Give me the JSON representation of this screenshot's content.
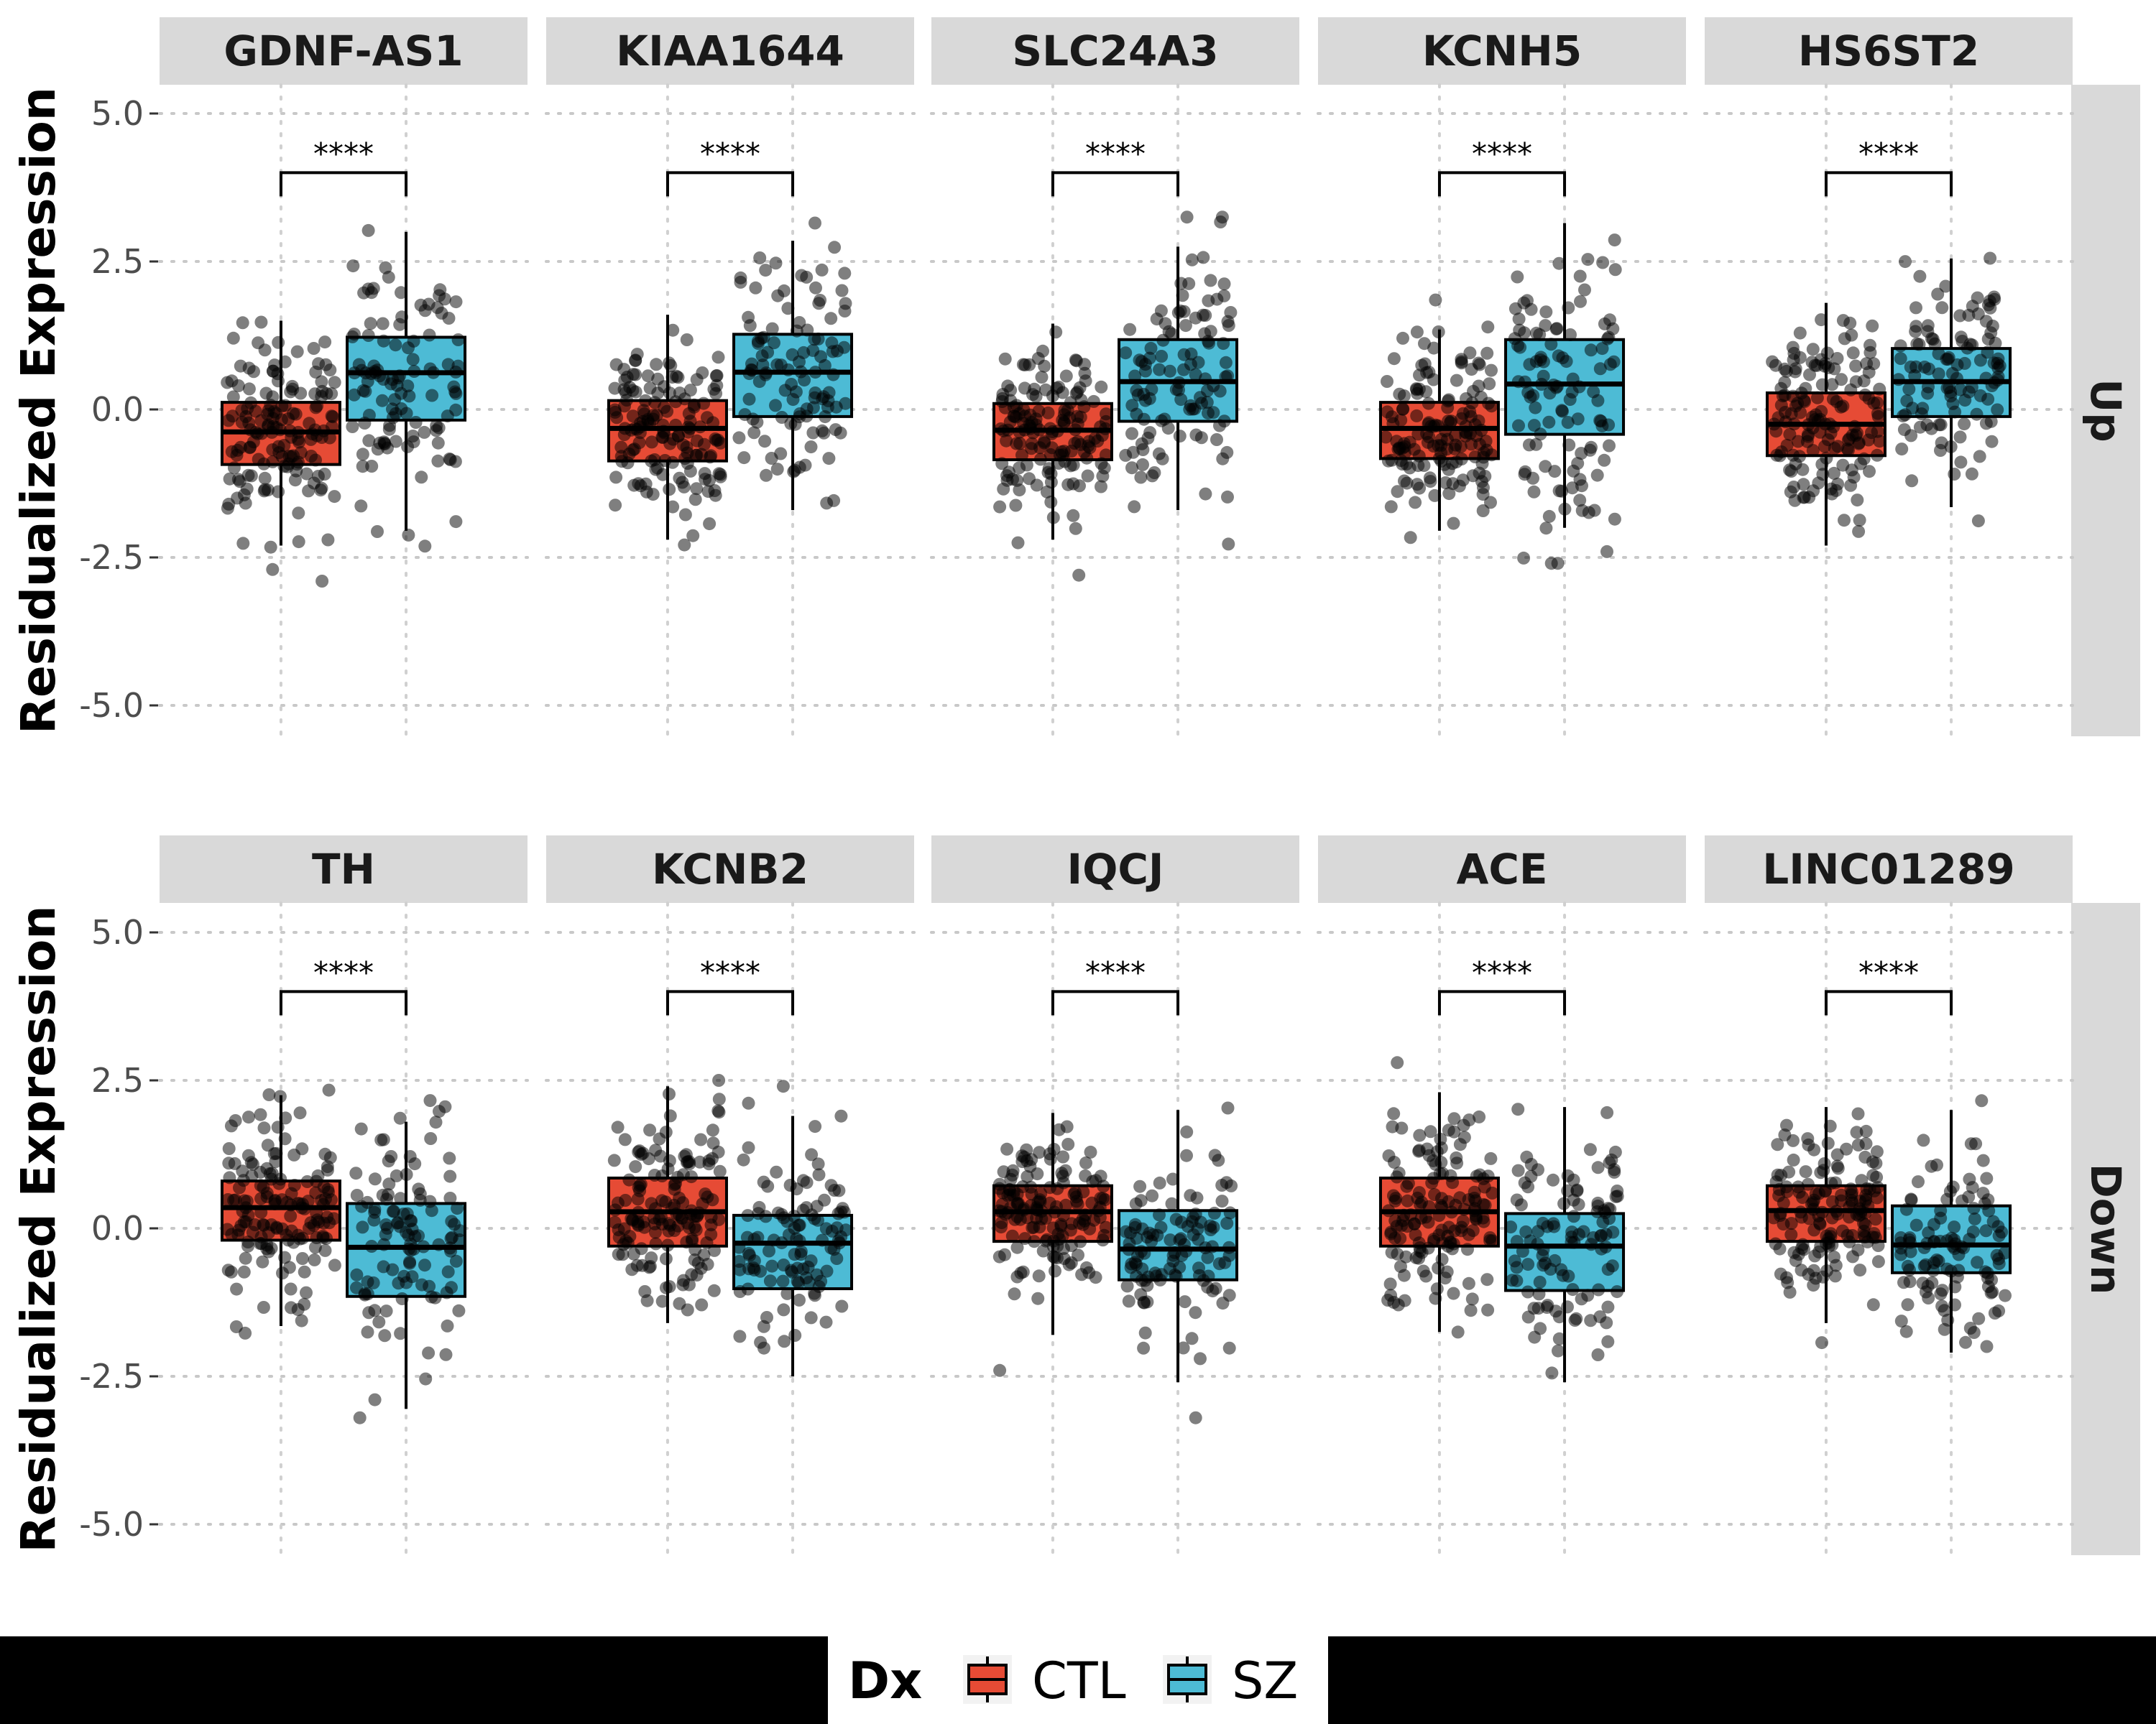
{
  "chart_data": {
    "type": "box",
    "ylabel": "Residualized Expression",
    "ylim": [
      -5.5,
      5.5
    ],
    "yticks": [
      5.0,
      2.5,
      0.0,
      -2.5,
      -5.0
    ],
    "ytick_labels": [
      "5.0",
      "2.5",
      "0.0",
      "-2.5",
      "-5.0"
    ],
    "grid": "horizontal dotted",
    "legend": {
      "title": "Dx",
      "position": "bottom",
      "entries": [
        {
          "label": "CTL",
          "color": "#E64B35"
        },
        {
          "label": "SZ",
          "color": "#4DBBD5"
        }
      ]
    },
    "significance_label": "****",
    "rows": [
      {
        "label": "Up",
        "panels": [
          {
            "gene": "GDNF-AS1",
            "groups": [
              {
                "dx": "CTL",
                "q1": -0.93,
                "median": -0.38,
                "q3": 0.12,
                "whisker_low": -2.3,
                "whisker_high": 1.5
              },
              {
                "dx": "SZ",
                "q1": -0.18,
                "median": 0.62,
                "q3": 1.22,
                "whisker_low": -2.05,
                "whisker_high": 3.0
              }
            ]
          },
          {
            "gene": "KIAA1644",
            "groups": [
              {
                "dx": "CTL",
                "q1": -0.87,
                "median": -0.32,
                "q3": 0.15,
                "whisker_low": -2.2,
                "whisker_high": 1.6
              },
              {
                "dx": "SZ",
                "q1": -0.12,
                "median": 0.63,
                "q3": 1.27,
                "whisker_low": -1.7,
                "whisker_high": 2.85
              }
            ]
          },
          {
            "gene": "SLC24A3",
            "groups": [
              {
                "dx": "CTL",
                "q1": -0.85,
                "median": -0.35,
                "q3": 0.1,
                "whisker_low": -2.2,
                "whisker_high": 1.45
              },
              {
                "dx": "SZ",
                "q1": -0.2,
                "median": 0.47,
                "q3": 1.18,
                "whisker_low": -1.7,
                "whisker_high": 2.75
              }
            ]
          },
          {
            "gene": "KCNH5",
            "groups": [
              {
                "dx": "CTL",
                "q1": -0.83,
                "median": -0.32,
                "q3": 0.12,
                "whisker_low": -2.05,
                "whisker_high": 1.35
              },
              {
                "dx": "SZ",
                "q1": -0.42,
                "median": 0.43,
                "q3": 1.18,
                "whisker_low": -2.0,
                "whisker_high": 3.15
              }
            ]
          },
          {
            "gene": "HS6ST2",
            "groups": [
              {
                "dx": "CTL",
                "q1": -0.78,
                "median": -0.25,
                "q3": 0.28,
                "whisker_low": -2.3,
                "whisker_high": 1.8
              },
              {
                "dx": "SZ",
                "q1": -0.12,
                "median": 0.47,
                "q3": 1.03,
                "whisker_low": -1.65,
                "whisker_high": 2.55
              }
            ]
          }
        ]
      },
      {
        "label": "Down",
        "panels": [
          {
            "gene": "TH",
            "groups": [
              {
                "dx": "CTL",
                "q1": -0.2,
                "median": 0.35,
                "q3": 0.8,
                "whisker_low": -1.65,
                "whisker_high": 2.25
              },
              {
                "dx": "SZ",
                "q1": -1.15,
                "median": -0.32,
                "q3": 0.42,
                "whisker_low": -3.05,
                "whisker_high": 1.8
              }
            ]
          },
          {
            "gene": "KCNB2",
            "groups": [
              {
                "dx": "CTL",
                "q1": -0.3,
                "median": 0.28,
                "q3": 0.85,
                "whisker_low": -1.6,
                "whisker_high": 2.4
              },
              {
                "dx": "SZ",
                "q1": -1.02,
                "median": -0.25,
                "q3": 0.22,
                "whisker_low": -2.5,
                "whisker_high": 1.9
              }
            ]
          },
          {
            "gene": "IQCJ",
            "groups": [
              {
                "dx": "CTL",
                "q1": -0.22,
                "median": 0.28,
                "q3": 0.72,
                "whisker_low": -1.8,
                "whisker_high": 1.95
              },
              {
                "dx": "SZ",
                "q1": -0.87,
                "median": -0.35,
                "q3": 0.3,
                "whisker_low": -2.6,
                "whisker_high": 2.0
              }
            ]
          },
          {
            "gene": "ACE",
            "groups": [
              {
                "dx": "CTL",
                "q1": -0.3,
                "median": 0.28,
                "q3": 0.85,
                "whisker_low": -1.75,
                "whisker_high": 2.3
              },
              {
                "dx": "SZ",
                "q1": -1.05,
                "median": -0.3,
                "q3": 0.25,
                "whisker_low": -2.6,
                "whisker_high": 2.05
              }
            ]
          },
          {
            "gene": "LINC01289",
            "groups": [
              {
                "dx": "CTL",
                "q1": -0.22,
                "median": 0.3,
                "q3": 0.72,
                "whisker_low": -1.6,
                "whisker_high": 2.05
              },
              {
                "dx": "SZ",
                "q1": -0.75,
                "median": -0.28,
                "q3": 0.38,
                "whisker_low": -2.1,
                "whisker_high": 2.0
              }
            ]
          }
        ]
      }
    ]
  }
}
